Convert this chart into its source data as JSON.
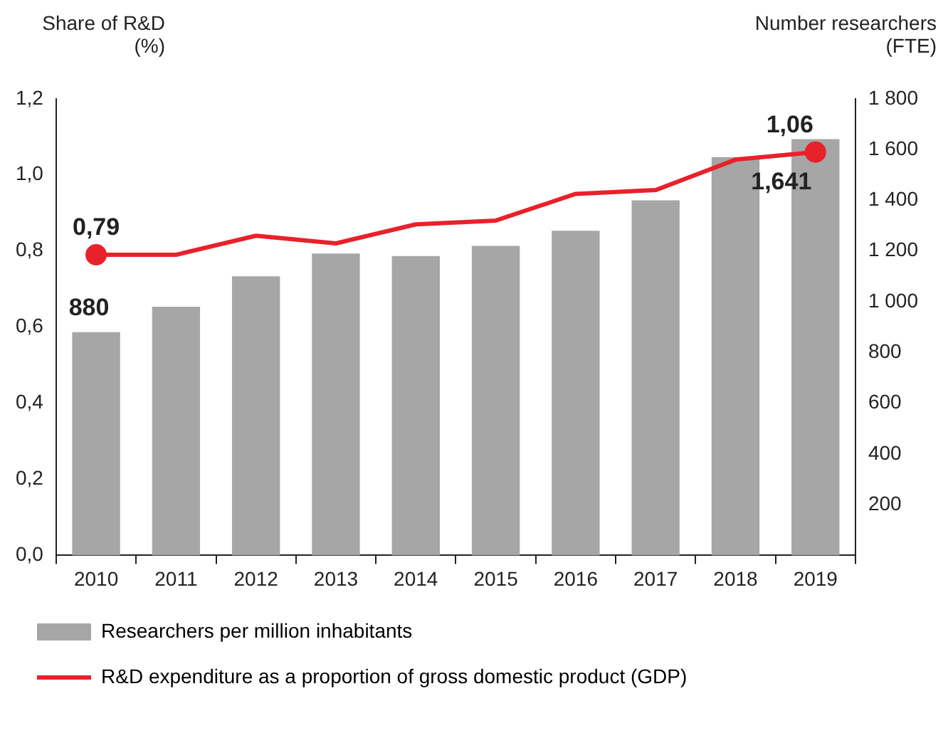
{
  "chart_data": {
    "type": "bar",
    "ylabel": "Share of R&D (%)",
    "y2label": "Number researchers (FTE)",
    "categories": [
      "2010",
      "2011",
      "2012",
      "2013",
      "2014",
      "2015",
      "2016",
      "2017",
      "2018",
      "2019"
    ],
    "series": [
      {
        "name": "Researchers per million inhabitants",
        "axis": "y2",
        "color": "#a6a6a6",
        "values": [
          880,
          980,
          1100,
          1190,
          1180,
          1220,
          1280,
          1400,
          1570,
          1641
        ],
        "value_labels": [
          "880",
          null,
          null,
          null,
          null,
          null,
          null,
          null,
          null,
          "1,641"
        ]
      },
      {
        "name": "R&D expenditure as a proportion of gross domestic product (GDP)",
        "type": "line",
        "axis": "y",
        "color": "#e8212b",
        "values": [
          0.79,
          0.79,
          0.84,
          0.82,
          0.87,
          0.88,
          0.95,
          0.96,
          1.04,
          1.06
        ],
        "value_labels": [
          "0,79",
          null,
          null,
          null,
          null,
          null,
          null,
          null,
          null,
          "1,06"
        ]
      }
    ],
    "ylim": [
      0,
      1.2
    ],
    "yticks": [
      {
        "value": 0,
        "label": "0,0"
      },
      {
        "value": 0.2,
        "label": "0,2"
      },
      {
        "value": 0.4,
        "label": "0,4"
      },
      {
        "value": 0.6,
        "label": "0,6"
      },
      {
        "value": 0.8,
        "label": "0,8"
      },
      {
        "value": 1,
        "label": "1,0"
      },
      {
        "value": 1.2,
        "label": "1,2"
      }
    ],
    "y2lim": [
      0,
      1800
    ],
    "y2ticks": [
      {
        "value": 0,
        "label": null
      },
      {
        "value": 200,
        "label": "200"
      },
      {
        "value": 400,
        "label": "400"
      },
      {
        "value": 600,
        "label": "600"
      },
      {
        "value": 800,
        "label": "800"
      },
      {
        "value": 1000,
        "label": "1 000"
      },
      {
        "value": 1200,
        "label": "1 200"
      },
      {
        "value": 1400,
        "label": "1 400"
      },
      {
        "value": 1600,
        "label": "1 600"
      },
      {
        "value": 1800,
        "label": "1 800"
      }
    ],
    "grid": false,
    "legend": "bottom"
  }
}
